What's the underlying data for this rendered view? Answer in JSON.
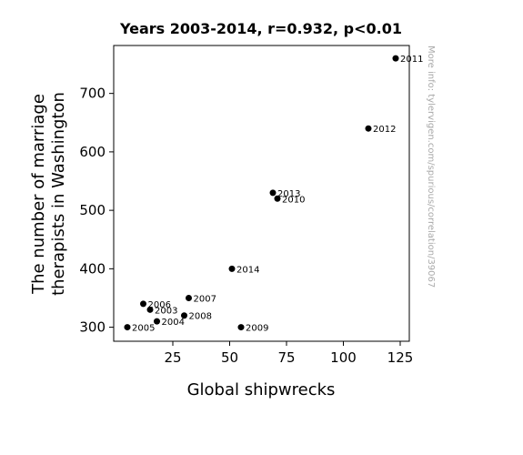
{
  "chart_data": {
    "type": "scatter",
    "title": "Years 2003-2014, r=0.932, p<0.01",
    "xlabel": "Global shipwrecks",
    "ylabel_lines": [
      "The number of marriage",
      "therapists in Washington"
    ],
    "xlim": [
      -1,
      129
    ],
    "ylim": [
      276,
      782
    ],
    "xticks": [
      25,
      50,
      75,
      100,
      125
    ],
    "yticks": [
      300,
      400,
      500,
      600,
      700
    ],
    "grid": false,
    "marker_color": "#000000",
    "points": [
      {
        "label": "2003",
        "x": 15,
        "y": 330
      },
      {
        "label": "2004",
        "x": 18,
        "y": 310
      },
      {
        "label": "2005",
        "x": 5,
        "y": 300
      },
      {
        "label": "2006",
        "x": 12,
        "y": 340
      },
      {
        "label": "2007",
        "x": 32,
        "y": 350
      },
      {
        "label": "2008",
        "x": 30,
        "y": 320
      },
      {
        "label": "2009",
        "x": 55,
        "y": 300
      },
      {
        "label": "2010",
        "x": 71,
        "y": 520
      },
      {
        "label": "2011",
        "x": 123,
        "y": 760
      },
      {
        "label": "2012",
        "x": 111,
        "y": 640
      },
      {
        "label": "2013",
        "x": 69,
        "y": 530
      },
      {
        "label": "2014",
        "x": 51,
        "y": 400
      }
    ]
  },
  "watermark": "More info: tylervigen.com/spurious/correlation/39067"
}
